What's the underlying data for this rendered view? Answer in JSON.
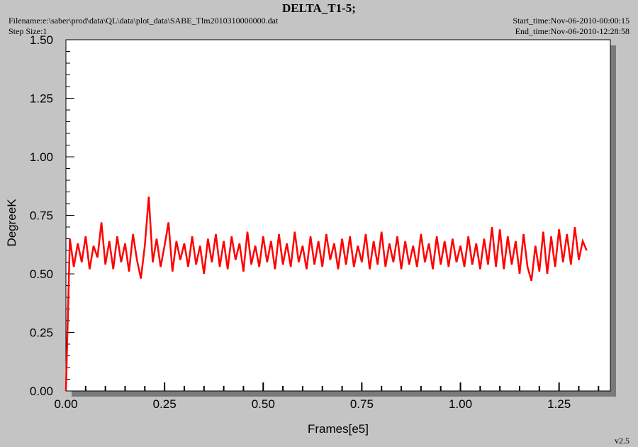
{
  "chart_data": {
    "type": "line",
    "title": "DELTA_T1-5;",
    "filename": "Filename:e:\\saber\\prod\\data\\QL\\data\\plot_data\\SABE_Tlm2010310000000.dat",
    "step_size": "Step Size:1",
    "start_time": "Start_time:Nov-06-2010-00:00:15",
    "end_time": "End_time:Nov-06-2010-12:28:58",
    "version": "v2.5",
    "x_label": "Frames[e5]",
    "y_label": "DegreeK",
    "color": "#ff0000",
    "xlim": [
      0,
      1.38
    ],
    "ylim": [
      0,
      1.5
    ],
    "xticks": [
      {
        "value": 0,
        "label": "0.00"
      },
      {
        "value": 0.25,
        "label": "0.25"
      },
      {
        "value": 0.5,
        "label": "0.50"
      },
      {
        "value": 0.75,
        "label": "0.75"
      },
      {
        "value": 1,
        "label": "1.00"
      },
      {
        "value": 1.25,
        "label": "1.25"
      }
    ],
    "yticks": [
      {
        "value": 0,
        "label": "0.00"
      },
      {
        "value": 0.25,
        "label": "0.25"
      },
      {
        "value": 0.5,
        "label": "0.50"
      },
      {
        "value": 0.75,
        "label": "0.75"
      },
      {
        "value": 1,
        "label": "1.00"
      },
      {
        "value": 1.25,
        "label": "1.25"
      },
      {
        "value": 1.5,
        "label": "1.50"
      }
    ],
    "xminorticks": [
      0.05,
      0.1,
      0.15,
      0.2,
      0.3,
      0.35,
      0.4,
      0.45,
      0.55,
      0.6,
      0.65,
      0.7,
      0.8,
      0.85,
      0.9,
      0.95,
      1.05,
      1.1,
      1.15,
      1.2,
      1.3,
      1.35
    ],
    "yminorticks": [
      0.05,
      0.1,
      0.15,
      0.2,
      0.3,
      0.35,
      0.4,
      0.45,
      0.55,
      0.6,
      0.65,
      0.7,
      0.8,
      0.85,
      0.9,
      0.95,
      1.05,
      1.1,
      1.15,
      1.2,
      1.3,
      1.35,
      1.4,
      1.45
    ],
    "x": [
      0,
      0.01,
      0.02,
      0.03,
      0.04,
      0.05,
      0.06,
      0.07,
      0.08,
      0.09,
      0.1,
      0.11,
      0.12,
      0.13,
      0.14,
      0.15,
      0.16,
      0.17,
      0.18,
      0.19,
      0.2,
      0.21,
      0.22,
      0.23,
      0.24,
      0.25,
      0.26,
      0.27,
      0.28,
      0.29,
      0.3,
      0.31,
      0.32,
      0.33,
      0.34,
      0.35,
      0.36,
      0.37,
      0.38,
      0.39,
      0.4,
      0.41,
      0.42,
      0.43,
      0.44,
      0.45,
      0.46,
      0.47,
      0.48,
      0.49,
      0.5,
      0.51,
      0.52,
      0.53,
      0.54,
      0.55,
      0.56,
      0.57,
      0.58,
      0.59,
      0.6,
      0.61,
      0.62,
      0.63,
      0.64,
      0.65,
      0.66,
      0.67,
      0.68,
      0.69,
      0.7,
      0.71,
      0.72,
      0.73,
      0.74,
      0.75,
      0.76,
      0.77,
      0.78,
      0.79,
      0.8,
      0.81,
      0.82,
      0.83,
      0.84,
      0.85,
      0.86,
      0.87,
      0.88,
      0.89,
      0.9,
      0.91,
      0.92,
      0.93,
      0.94,
      0.95,
      0.96,
      0.97,
      0.98,
      0.99,
      1,
      1.01,
      1.02,
      1.03,
      1.04,
      1.05,
      1.06,
      1.07,
      1.08,
      1.09,
      1.1,
      1.11,
      1.12,
      1.13,
      1.14,
      1.15,
      1.16,
      1.17,
      1.18,
      1.19,
      1.2,
      1.21,
      1.22,
      1.23,
      1.24,
      1.25,
      1.26,
      1.27,
      1.28,
      1.29,
      1.3,
      1.31,
      1.32
    ],
    "values": [
      0,
      0.65,
      0.53,
      0.63,
      0.55,
      0.66,
      0.52,
      0.62,
      0.57,
      0.72,
      0.54,
      0.64,
      0.52,
      0.66,
      0.55,
      0.63,
      0.51,
      0.67,
      0.56,
      0.48,
      0.62,
      0.83,
      0.55,
      0.65,
      0.53,
      0.62,
      0.72,
      0.51,
      0.64,
      0.56,
      0.63,
      0.53,
      0.66,
      0.54,
      0.62,
      0.5,
      0.65,
      0.55,
      0.67,
      0.53,
      0.64,
      0.52,
      0.66,
      0.56,
      0.63,
      0.51,
      0.68,
      0.54,
      0.62,
      0.53,
      0.66,
      0.55,
      0.64,
      0.52,
      0.67,
      0.54,
      0.63,
      0.53,
      0.68,
      0.55,
      0.62,
      0.52,
      0.66,
      0.54,
      0.64,
      0.53,
      0.67,
      0.56,
      0.63,
      0.52,
      0.65,
      0.54,
      0.66,
      0.53,
      0.62,
      0.55,
      0.67,
      0.52,
      0.64,
      0.54,
      0.68,
      0.53,
      0.63,
      0.55,
      0.66,
      0.52,
      0.64,
      0.54,
      0.62,
      0.53,
      0.67,
      0.55,
      0.63,
      0.52,
      0.66,
      0.54,
      0.64,
      0.53,
      0.65,
      0.55,
      0.62,
      0.53,
      0.66,
      0.54,
      0.63,
      0.52,
      0.65,
      0.54,
      0.7,
      0.53,
      0.69,
      0.52,
      0.66,
      0.54,
      0.64,
      0.5,
      0.67,
      0.53,
      0.47,
      0.62,
      0.51,
      0.68,
      0.5,
      0.66,
      0.53,
      0.69,
      0.55,
      0.67,
      0.54,
      0.7,
      0.56,
      0.64,
      0.6
    ]
  }
}
